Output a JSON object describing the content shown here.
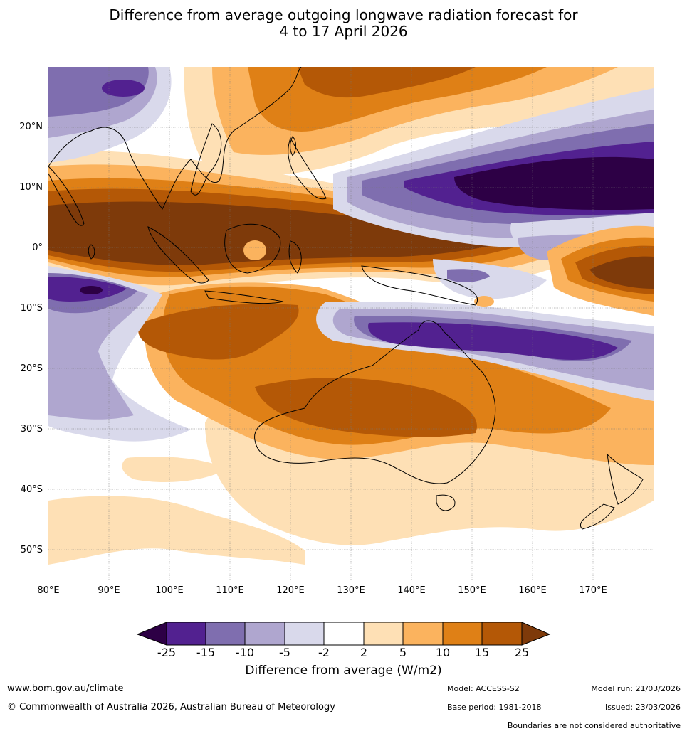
{
  "title": {
    "line1": "Difference from average outgoing longwave radiation forecast for",
    "line2": "4 to 17 April 2026"
  },
  "map": {
    "lat_labels": [
      "20°N",
      "10°N",
      "0°",
      "10°S",
      "20°S",
      "30°S",
      "40°S",
      "50°S"
    ],
    "lon_labels": [
      "80°E",
      "90°E",
      "100°E",
      "110°E",
      "120°E",
      "130°E",
      "140°E",
      "150°E",
      "160°E",
      "170°E"
    ],
    "extent": {
      "lon_min": 80,
      "lon_max": 180,
      "lat_min": -55,
      "lat_max": 30
    }
  },
  "colorbar": {
    "ticks": [
      "-25",
      "-15",
      "-10",
      "-5",
      "-2",
      "2",
      "5",
      "10",
      "15",
      "25"
    ],
    "colors": [
      "#2d0045",
      "#522190",
      "#7f6eaf",
      "#afa6cf",
      "#d9d9eb",
      "#ffffff",
      "#fee0b5",
      "#fbb35e",
      "#df8016",
      "#b45806",
      "#7e3a0a"
    ],
    "title": "Difference from average (W/m2)"
  },
  "footer": {
    "website": "www.bom.gov.au/climate",
    "copyright": "© Commonwealth of Australia 2026, Australian Bureau of Meteorology",
    "model": "Model: ACCESS-S2",
    "base_period": "Base period: 1981-2018",
    "model_run": "Model run: 21/03/2026",
    "issued": "Issued: 23/03/2026",
    "disclaimer": "Boundaries are not considered authoritative"
  }
}
